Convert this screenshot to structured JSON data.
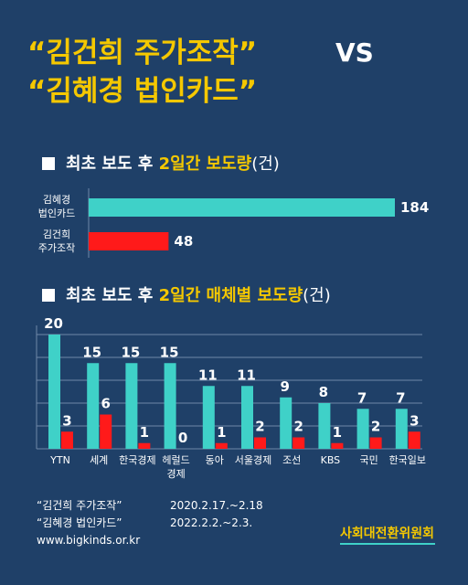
{
  "title": {
    "line1": "“김건희 주가조작”",
    "vs": "VS",
    "line2": "“김혜경 법인카드”"
  },
  "section1": {
    "prefix": "최초 보도 후 ",
    "highlight": "2일간 보도량",
    "unit": "(건)"
  },
  "section2": {
    "prefix": "최초 보도 후 ",
    "highlight": "2일간 매체별 보도량",
    "unit": "(건)"
  },
  "chart_data": [
    {
      "type": "bar",
      "orientation": "horizontal",
      "categories": [
        "김혜경\n법인카드",
        "김건희\n주가조작"
      ],
      "values": [
        184,
        48
      ],
      "colors": [
        "#3fd1c8",
        "#ff1a1a"
      ],
      "xlim": [
        0,
        184
      ]
    },
    {
      "type": "bar",
      "categories": [
        "YTN",
        "세계",
        "한국경제",
        "헤럴드\n경제",
        "동아",
        "서울경제",
        "조선",
        "KBS",
        "국민",
        "한국일보"
      ],
      "series": [
        {
          "values": [
            20,
            15,
            15,
            15,
            11,
            11,
            9,
            8,
            7,
            7
          ],
          "color": "#3fd1c8"
        },
        {
          "values": [
            3,
            6,
            1,
            0,
            1,
            2,
            2,
            1,
            2,
            3
          ],
          "color": "#ff1a1a"
        }
      ],
      "ylim": [
        0,
        20
      ],
      "grid": true
    }
  ],
  "footer": {
    "lines": [
      {
        "label": "“김건희 주가조작”",
        "dates": "2020.2.17.~2.18"
      },
      {
        "label": "“김혜경 법인카드”",
        "dates": "2022.2.2.~2.3."
      }
    ],
    "url": "www.bigkinds.or.kr",
    "org": "사회대전환위원회"
  },
  "colors": {
    "background": "#1f4068",
    "accent": "#f5c800",
    "teal": "#3fd1c8",
    "red": "#ff1a1a"
  }
}
